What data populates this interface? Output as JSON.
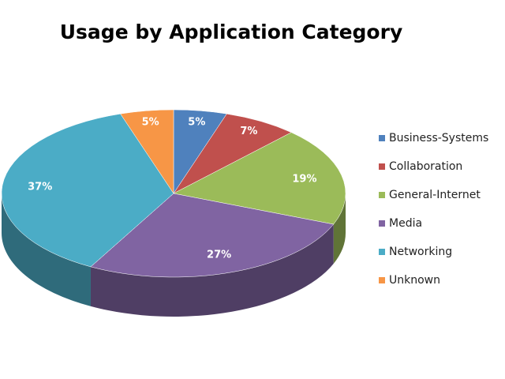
{
  "chart_data": {
    "type": "pie3d",
    "title": "Usage by Application Category",
    "categories": [
      "Business-Systems",
      "Collaboration",
      "General-Internet",
      "Media",
      "Networking",
      "Unknown"
    ],
    "values": [
      5,
      7,
      19,
      27,
      37,
      5
    ],
    "value_labels": [
      "5%",
      "7%",
      "19%",
      "27%",
      "37%",
      "5%"
    ],
    "colors": [
      "#4f81bd",
      "#c0504d",
      "#9bbb59",
      "#8064a2",
      "#4bacc6",
      "#f79646"
    ],
    "legend": "right"
  }
}
